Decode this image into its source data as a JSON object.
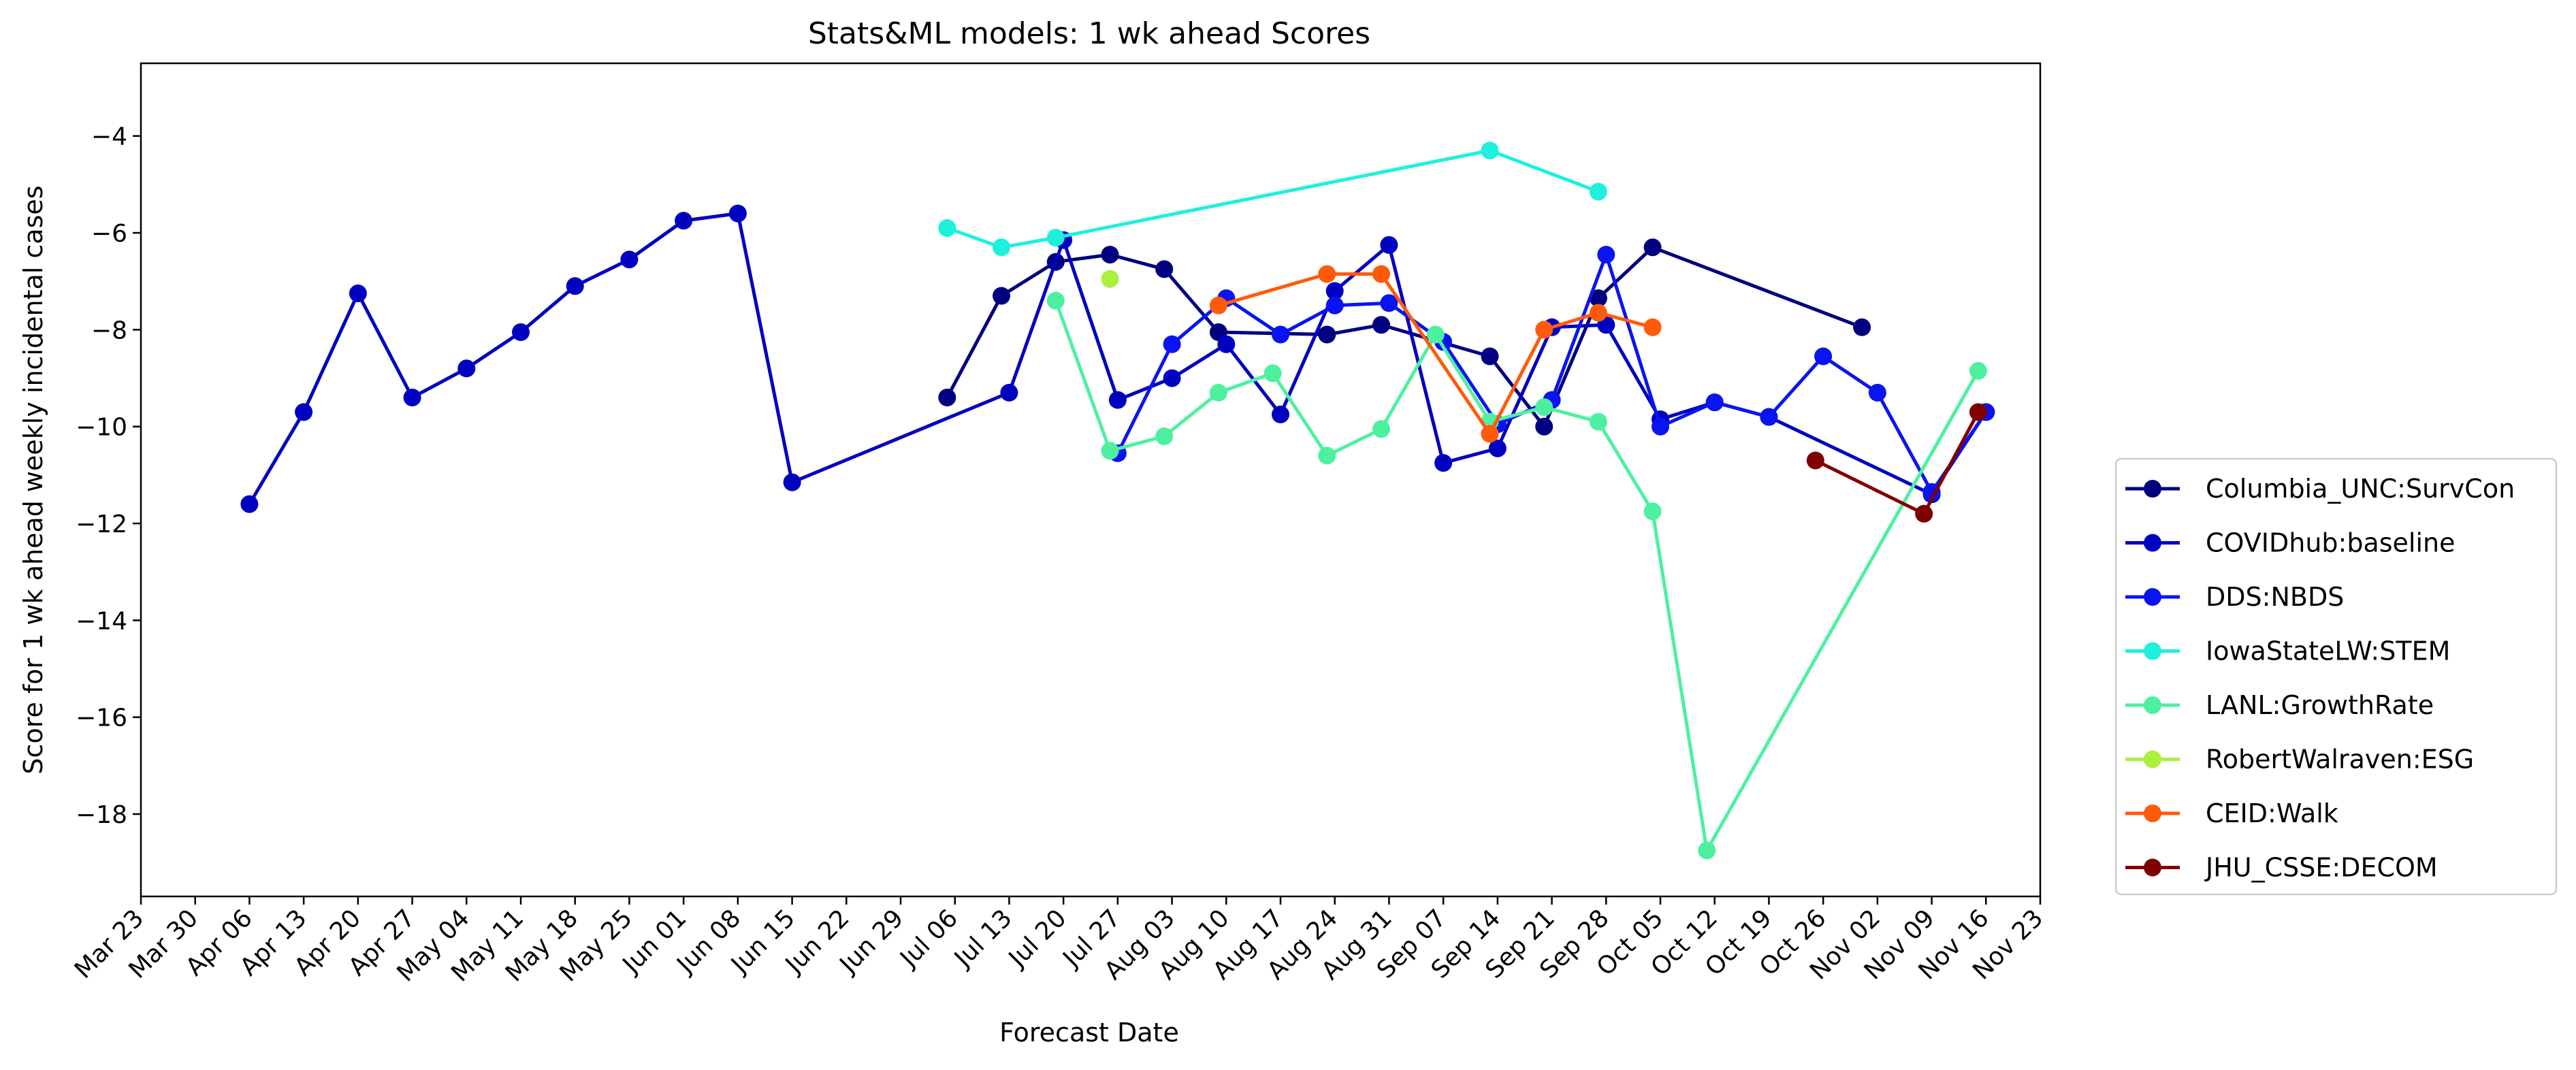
{
  "chart_data": {
    "type": "line",
    "title": "Stats&ML models: 1 wk ahead Scores",
    "xlabel": "Forecast Date",
    "ylabel": "Score for 1 wk ahead weekly incidental cases",
    "xaxis": "date",
    "year": 2020,
    "xlim": [
      "2020-03-23",
      "2020-11-23"
    ],
    "ylim": [
      -19.7,
      -2.5
    ],
    "x_ticks": [
      "Mar 23",
      "Mar 30",
      "Apr 06",
      "Apr 13",
      "Apr 20",
      "Apr 27",
      "May 04",
      "May 11",
      "May 18",
      "May 25",
      "Jun 01",
      "Jun 08",
      "Jun 15",
      "Jun 22",
      "Jun 29",
      "Jul 06",
      "Jul 13",
      "Jul 20",
      "Jul 27",
      "Aug 03",
      "Aug 10",
      "Aug 17",
      "Aug 24",
      "Aug 31",
      "Sep 07",
      "Sep 14",
      "Sep 21",
      "Sep 28",
      "Oct 05",
      "Oct 12",
      "Oct 19",
      "Oct 26",
      "Nov 02",
      "Nov 09",
      "Nov 16",
      "Nov 23"
    ],
    "y_ticks": [
      -4,
      -6,
      -8,
      -10,
      -12,
      -14,
      -16,
      -18
    ],
    "grid": false,
    "legend_position": "right",
    "series": [
      {
        "name": "Columbia_UNC:SurvCon",
        "color": "#000080",
        "points": [
          [
            "2020-07-05",
            -9.4
          ],
          [
            "2020-07-12",
            -7.3
          ],
          [
            "2020-07-19",
            -6.6
          ],
          [
            "2020-07-26",
            -6.45
          ],
          [
            "2020-08-02",
            -6.75
          ],
          [
            "2020-08-09",
            -8.05
          ],
          [
            "2020-08-23",
            -8.1
          ],
          [
            "2020-08-30",
            -7.9
          ],
          [
            "2020-09-13",
            -8.55
          ],
          [
            "2020-09-20",
            -10.0
          ],
          [
            "2020-09-27",
            -7.35
          ],
          [
            "2020-10-04",
            -6.3
          ],
          [
            "2020-10-31",
            -7.95
          ]
        ]
      },
      {
        "name": "COVIDhub:baseline",
        "color": "#0000c0",
        "points": [
          [
            "2020-04-06",
            -11.6
          ],
          [
            "2020-04-13",
            -9.7
          ],
          [
            "2020-04-20",
            -7.25
          ],
          [
            "2020-04-27",
            -9.4
          ],
          [
            "2020-05-04",
            -8.8
          ],
          [
            "2020-05-11",
            -8.05
          ],
          [
            "2020-05-18",
            -7.1
          ],
          [
            "2020-05-25",
            -6.55
          ],
          [
            "2020-06-01",
            -5.75
          ],
          [
            "2020-06-08",
            -5.6
          ],
          [
            "2020-06-15",
            -11.15
          ],
          [
            "2020-07-13",
            -9.3
          ],
          [
            "2020-07-20",
            -6.15
          ],
          [
            "2020-07-27",
            -9.45
          ],
          [
            "2020-08-03",
            -9.0
          ],
          [
            "2020-08-10",
            -8.3
          ],
          [
            "2020-08-17",
            -9.75
          ],
          [
            "2020-08-24",
            -7.2
          ],
          [
            "2020-08-31",
            -6.25
          ],
          [
            "2020-09-07",
            -10.75
          ],
          [
            "2020-09-14",
            -10.45
          ],
          [
            "2020-09-21",
            -7.95
          ],
          [
            "2020-09-28",
            -7.9
          ],
          [
            "2020-10-05",
            -9.85
          ],
          [
            "2020-10-12",
            -9.5
          ],
          [
            "2020-10-19",
            -9.8
          ],
          [
            "2020-11-09",
            -11.4
          ],
          [
            "2020-11-16",
            -9.7
          ]
        ]
      },
      {
        "name": "DDS:NBDS",
        "color": "#0a14f0",
        "points": [
          [
            "2020-07-27",
            -10.55
          ],
          [
            "2020-08-03",
            -8.3
          ],
          [
            "2020-08-10",
            -7.35
          ],
          [
            "2020-08-17",
            -8.1
          ],
          [
            "2020-08-24",
            -7.5
          ],
          [
            "2020-08-31",
            -7.45
          ],
          [
            "2020-09-07",
            -8.25
          ],
          [
            "2020-09-14",
            -9.95
          ],
          [
            "2020-09-21",
            -9.45
          ],
          [
            "2020-09-28",
            -6.45
          ],
          [
            "2020-10-05",
            -10.0
          ],
          [
            "2020-10-12",
            -9.5
          ],
          [
            "2020-10-19",
            -9.8
          ],
          [
            "2020-10-26",
            -8.55
          ],
          [
            "2020-11-02",
            -9.3
          ],
          [
            "2020-11-09",
            -11.35
          ],
          [
            "2020-11-16",
            -9.7
          ]
        ]
      },
      {
        "name": "IowaStateLW:STEM",
        "color": "#1ef0dc",
        "points": [
          [
            "2020-07-05",
            -5.9
          ],
          [
            "2020-07-12",
            -6.3
          ],
          [
            "2020-07-19",
            -6.1
          ],
          [
            "2020-09-13",
            -4.3
          ],
          [
            "2020-09-27",
            -5.15
          ]
        ]
      },
      {
        "name": "LANL:GrowthRate",
        "color": "#4ef0a0",
        "points": [
          [
            "2020-07-19",
            -7.4
          ],
          [
            "2020-07-26",
            -10.5
          ],
          [
            "2020-08-02",
            -10.2
          ],
          [
            "2020-08-09",
            -9.3
          ],
          [
            "2020-08-16",
            -8.9
          ],
          [
            "2020-08-23",
            -10.6
          ],
          [
            "2020-08-30",
            -10.05
          ],
          [
            "2020-09-06",
            -8.1
          ],
          [
            "2020-09-13",
            -9.9
          ],
          [
            "2020-09-20",
            -9.6
          ],
          [
            "2020-09-27",
            -9.9
          ],
          [
            "2020-10-04",
            -11.75
          ],
          [
            "2020-10-11",
            -18.75
          ],
          [
            "2020-11-15",
            -8.85
          ]
        ]
      },
      {
        "name": "RobertWalraven:ESG",
        "color": "#aaf03c",
        "points": [
          [
            "2020-07-26",
            -6.95
          ]
        ]
      },
      {
        "name": "CEID:Walk",
        "color": "#ff5a0a",
        "points": [
          [
            "2020-08-09",
            -7.5
          ],
          [
            "2020-08-23",
            -6.85
          ],
          [
            "2020-08-30",
            -6.85
          ],
          [
            "2020-09-13",
            -10.15
          ],
          [
            "2020-09-20",
            -8.0
          ],
          [
            "2020-09-27",
            -7.65
          ],
          [
            "2020-10-04",
            -7.95
          ]
        ]
      },
      {
        "name": "JHU_CSSE:DECOM",
        "color": "#800000",
        "points": [
          [
            "2020-10-25",
            -10.7
          ],
          [
            "2020-11-08",
            -11.8
          ],
          [
            "2020-11-15",
            -9.7
          ]
        ]
      }
    ]
  }
}
